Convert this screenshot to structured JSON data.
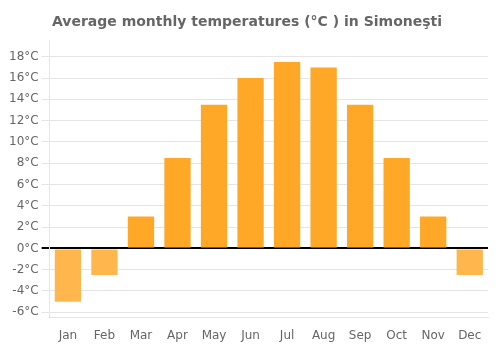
{
  "chart_data": {
    "type": "bar",
    "title": "Average monthly temperatures (°C ) in Simoneşti",
    "categories": [
      "Jan",
      "Feb",
      "Mar",
      "Apr",
      "May",
      "Jun",
      "Jul",
      "Aug",
      "Sep",
      "Oct",
      "Nov",
      "Dec"
    ],
    "values": [
      -5.0,
      -2.5,
      3.0,
      8.5,
      13.5,
      16.0,
      17.5,
      17.0,
      13.5,
      8.5,
      3.0,
      -2.5
    ],
    "colors": [
      "#FFB74D",
      "#FFB74D",
      "#FFA726",
      "#FFA726",
      "#FFA726",
      "#FFA726",
      "#FFA726",
      "#FFA726",
      "#FFA726",
      "#FFA726",
      "#FFA726",
      "#FFB74D"
    ],
    "ylim": [
      -6.5,
      19.5
    ],
    "yticks": [
      {
        "value": -6,
        "label": "-6°C"
      },
      {
        "value": -4,
        "label": "-4°C"
      },
      {
        "value": -2,
        "label": "-2°C"
      },
      {
        "value": 0,
        "label": "0°C"
      },
      {
        "value": 2,
        "label": "2°C"
      },
      {
        "value": 4,
        "label": "4°C"
      },
      {
        "value": 6,
        "label": "6°C"
      },
      {
        "value": 8,
        "label": "8°C"
      },
      {
        "value": 10,
        "label": "10°C"
      },
      {
        "value": 12,
        "label": "12°C"
      },
      {
        "value": 14,
        "label": "14°C"
      },
      {
        "value": 16,
        "label": "16°C"
      },
      {
        "value": 18,
        "label": "18°C"
      }
    ],
    "grid": true
  }
}
